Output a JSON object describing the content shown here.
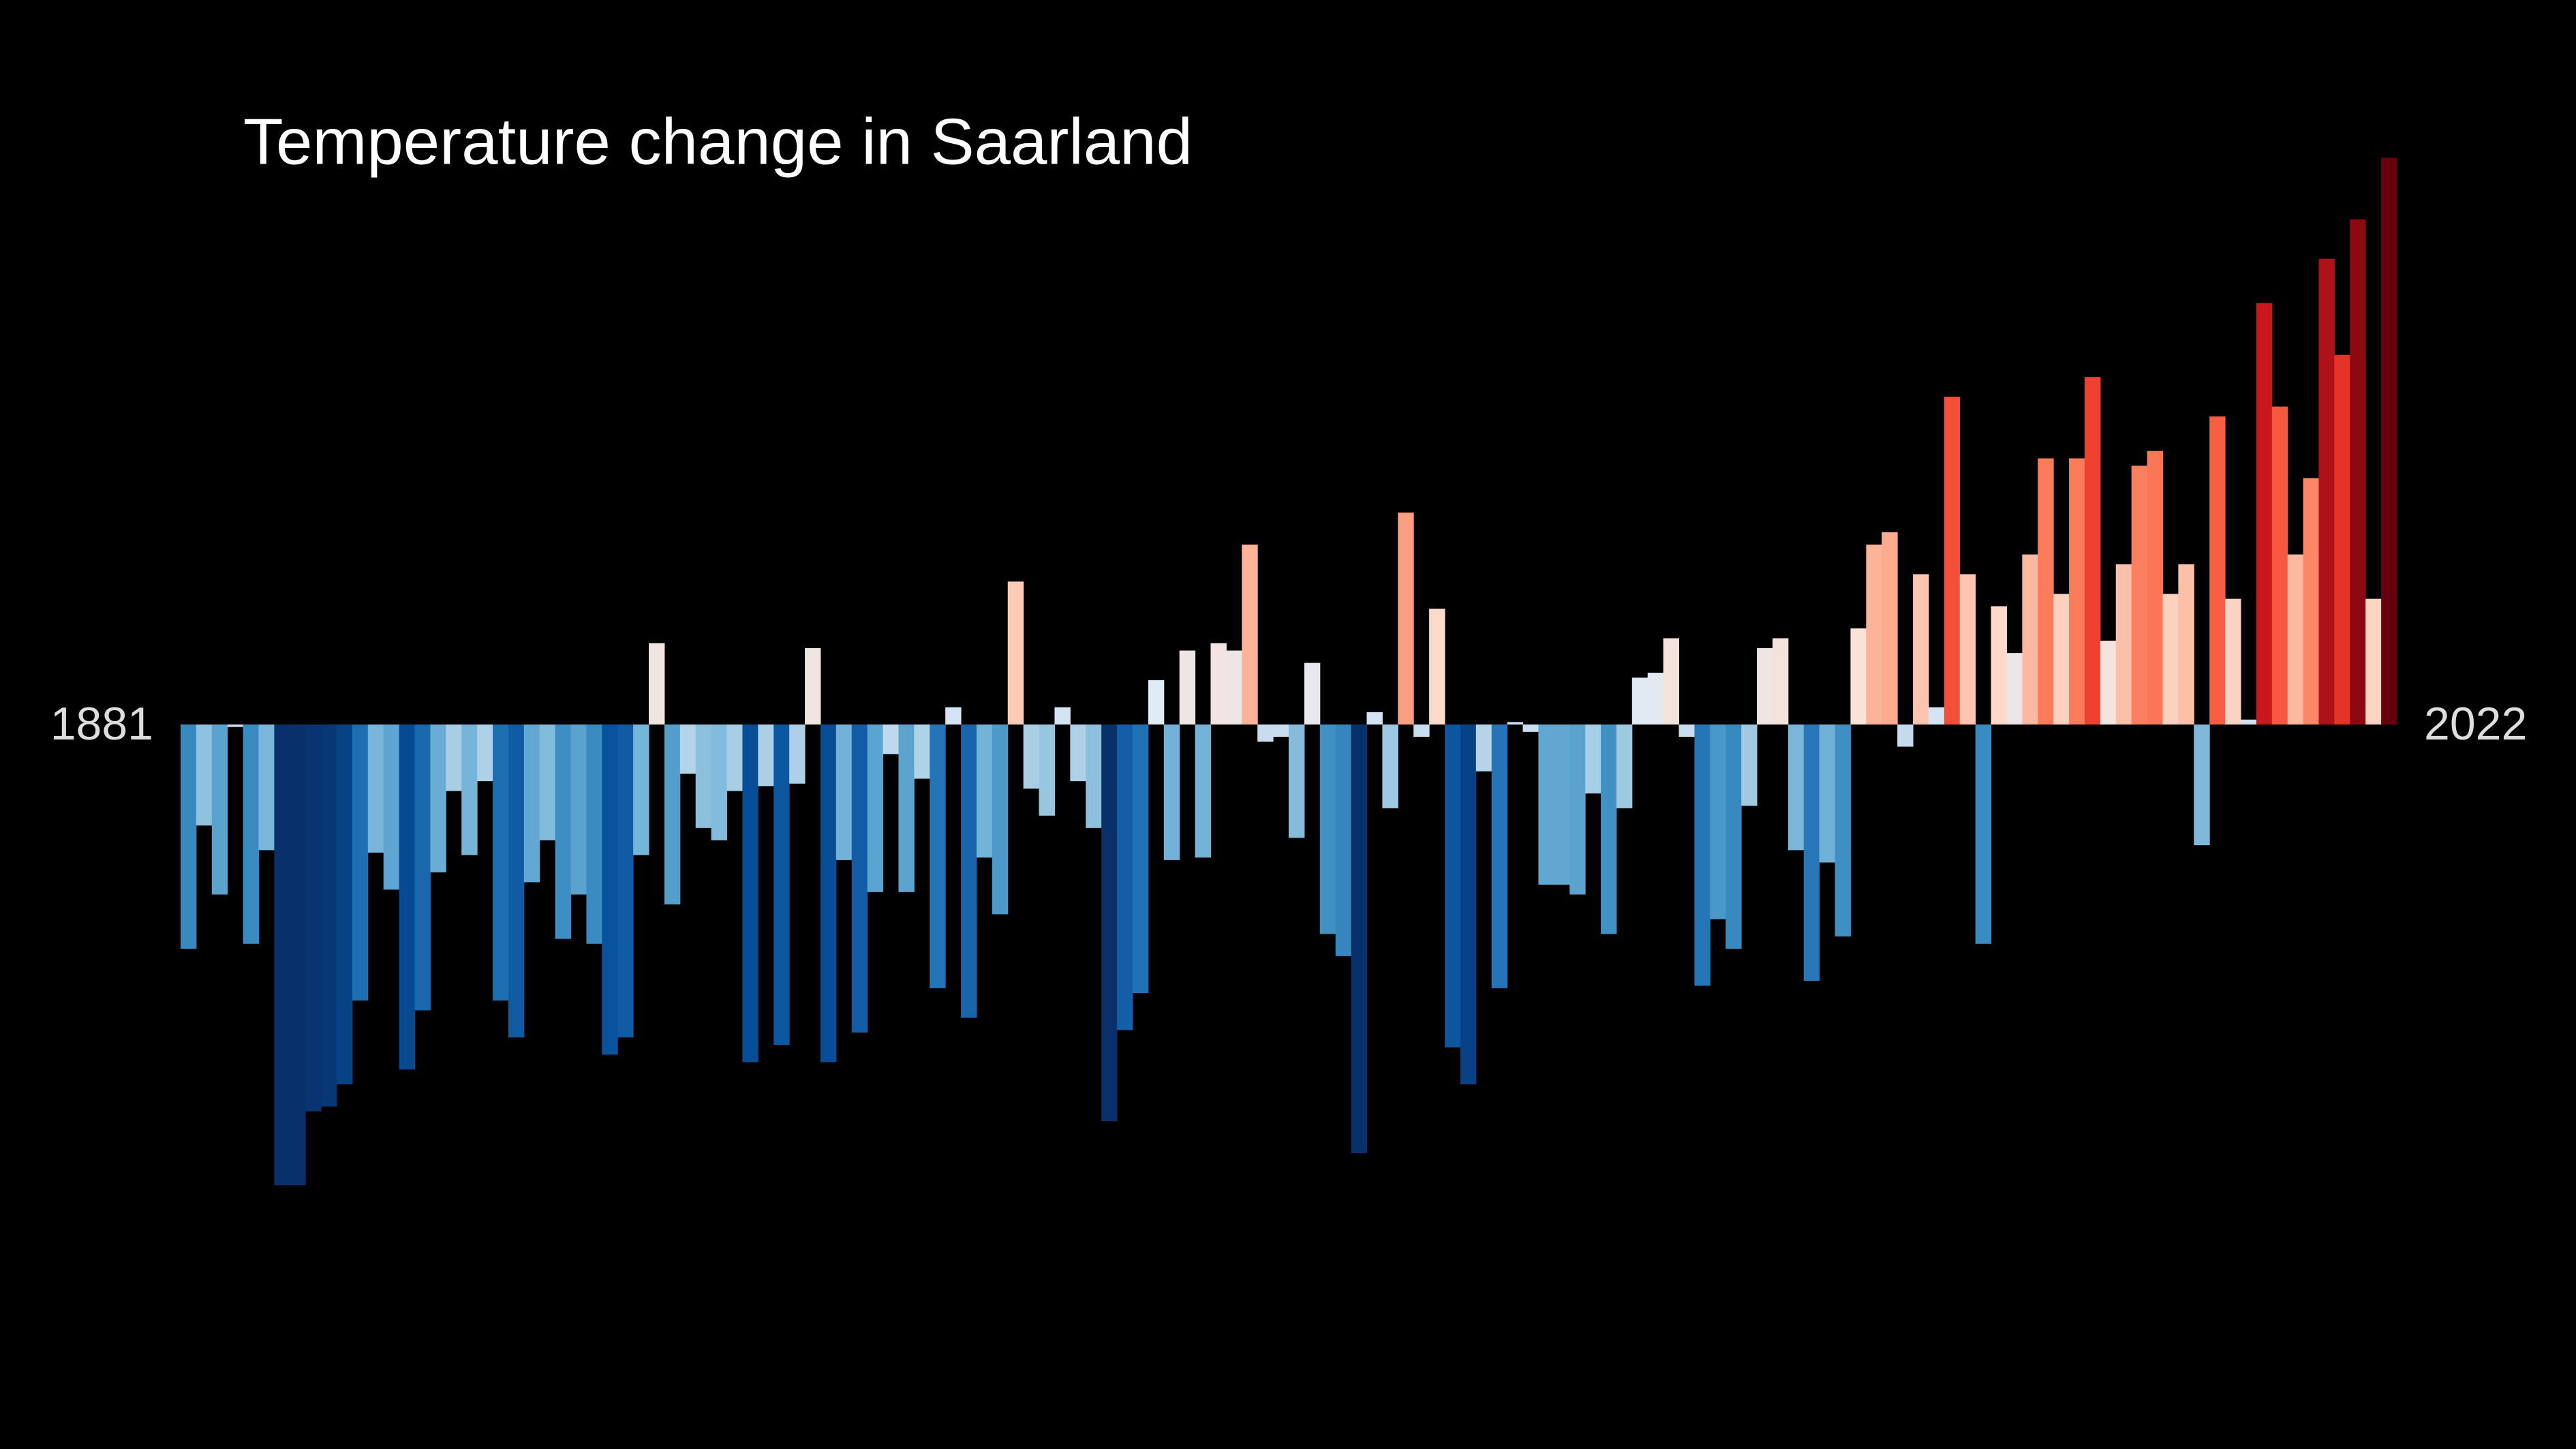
{
  "chart_data": {
    "type": "bar",
    "title": "Temperature change in Saarland",
    "categories": [
      "1881",
      null,
      null,
      null,
      null,
      null,
      null,
      null,
      null,
      null,
      null,
      null,
      null,
      null,
      null,
      null,
      null,
      null,
      null,
      null,
      null,
      null,
      null,
      null,
      null,
      null,
      null,
      null,
      null,
      null,
      null,
      null,
      null,
      null,
      null,
      null,
      null,
      null,
      null,
      null,
      null,
      null,
      null,
      null,
      null,
      null,
      null,
      null,
      null,
      null,
      null,
      null,
      null,
      null,
      null,
      null,
      null,
      null,
      null,
      null,
      null,
      null,
      null,
      null,
      null,
      null,
      null,
      null,
      null,
      null,
      null,
      null,
      null,
      null,
      null,
      null,
      null,
      null,
      null,
      null,
      null,
      null,
      null,
      null,
      null,
      null,
      null,
      null,
      null,
      null,
      null,
      null,
      null,
      null,
      null,
      null,
      null,
      null,
      null,
      null,
      null,
      null,
      null,
      null,
      null,
      null,
      null,
      null,
      null,
      null,
      null,
      null,
      null,
      null,
      null,
      null,
      null,
      null,
      null,
      null,
      null,
      null,
      null,
      null,
      null,
      null,
      null,
      null,
      null,
      null,
      null,
      null,
      null,
      null,
      null,
      null,
      null,
      null,
      null,
      null,
      null,
      "2022"
    ],
    "values": [
      -0.91,
      -0.41,
      -0.69,
      -0.01,
      -0.89,
      -0.51,
      -1.87,
      -1.87,
      -1.57,
      -1.55,
      -1.46,
      -1.12,
      -0.52,
      -0.67,
      -1.4,
      -1.16,
      -0.6,
      -0.27,
      -0.53,
      -0.23,
      -1.12,
      -1.27,
      -0.64,
      -0.47,
      -0.87,
      -0.69,
      -0.89,
      -1.34,
      -1.27,
      -0.53,
      0.33,
      -0.73,
      -0.2,
      -0.42,
      -0.47,
      -0.27,
      -1.37,
      -0.25,
      -1.3,
      -0.24,
      0.31,
      -1.37,
      -0.55,
      -1.25,
      -0.68,
      -0.12,
      -0.68,
      -0.22,
      -1.07,
      0.07,
      -1.19,
      -0.54,
      -0.77,
      0.58,
      -0.26,
      -0.37,
      0.07,
      -0.23,
      -0.42,
      -1.61,
      -1.24,
      -1.09,
      0.18,
      -0.55,
      0.3,
      -0.54,
      0.33,
      0.3,
      0.73,
      -0.07,
      -0.05,
      -0.46,
      0.25,
      -0.85,
      -0.94,
      -1.74,
      0.05,
      -0.34,
      0.86,
      -0.05,
      0.47,
      -1.31,
      -1.46,
      -0.19,
      -1.07,
      0.01,
      -0.03,
      -0.65,
      -0.65,
      -0.69,
      -0.28,
      -0.85,
      -0.34,
      0.19,
      0.21,
      0.35,
      -0.05,
      -1.06,
      -0.79,
      -0.91,
      -0.33,
      0.31,
      0.35,
      -0.51,
      -1.04,
      -0.56,
      -0.86,
      0.39,
      0.73,
      0.78,
      -0.09,
      0.61,
      0.07,
      1.33,
      0.61,
      -0.89,
      0.48,
      0.29,
      0.69,
      1.08,
      0.53,
      1.08,
      1.41,
      0.34,
      0.65,
      1.05,
      1.11,
      0.53,
      0.65,
      -0.49,
      1.25,
      0.51,
      0.02,
      1.71,
      1.29,
      0.69,
      1.0,
      1.89,
      1.5,
      2.05,
      0.51,
      2.3
    ],
    "ylim": [
      -2.94,
      2.94
    ],
    "color_scale": {
      "colors": [
        "#08306b",
        "#08519c",
        "#2171b5",
        "#4292c6",
        "#6baed6",
        "#9ecae1",
        "#c6dbef",
        "#deebf7",
        "#fee0d2",
        "#fcbba1",
        "#fc9272",
        "#fb6a4a",
        "#ef3b2c",
        "#cb181d",
        "#a50f15",
        "#67000d"
      ],
      "domain": [
        -1.6,
        2.2
      ]
    },
    "background": "#000000"
  }
}
